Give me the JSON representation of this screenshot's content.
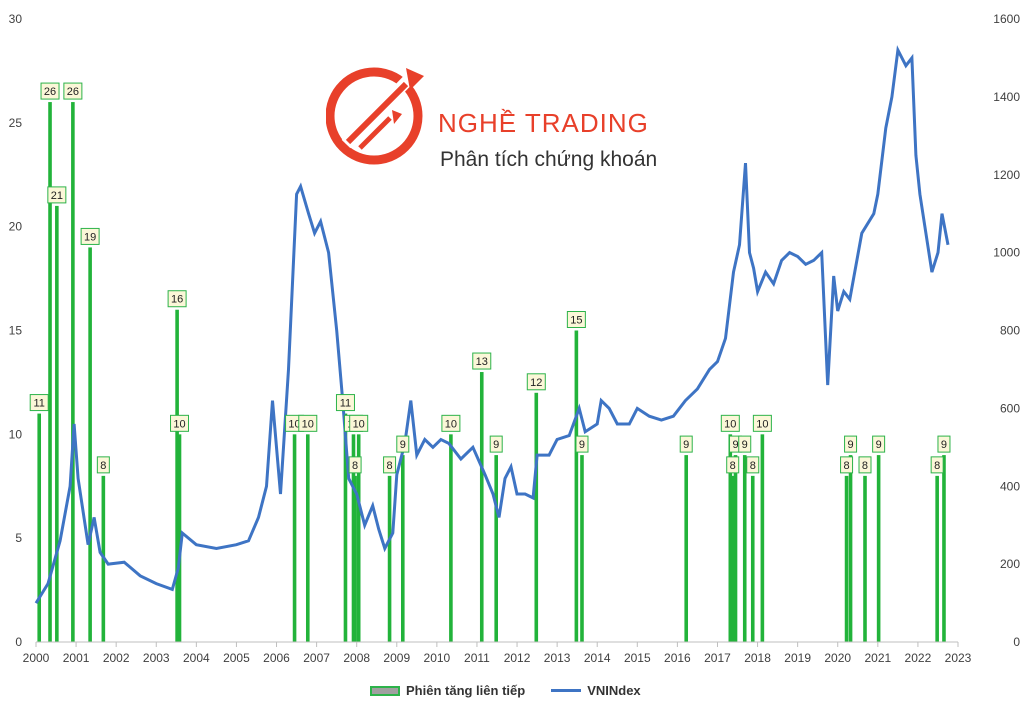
{
  "brand": {
    "title": "NGHỀ TRADING",
    "subtitle": "Phân tích chứng khoán"
  },
  "colors": {
    "bars": "#22b33a",
    "line": "#3e74c4",
    "label_bg": "#fbf7d8",
    "label_border": "#2db34a",
    "brand": "#e8402a"
  },
  "chart_data": {
    "type": "bar",
    "title": "",
    "legend": [
      "Phiên tăng liên tiếp",
      "VNINdex"
    ],
    "legend_position": "bottom",
    "grid": false,
    "x_range": [
      2000.0,
      2023.0
    ],
    "x_ticks": [
      "2000",
      "2001",
      "2002",
      "2003",
      "2004",
      "2005",
      "2006",
      "2007",
      "2008",
      "2009",
      "2010",
      "2011",
      "2012",
      "2013",
      "2014",
      "2015",
      "2016",
      "2017",
      "2018",
      "2019",
      "2020",
      "2021",
      "2022",
      "2023"
    ],
    "y_left_range": [
      0,
      30
    ],
    "y_left_ticks": [
      "0",
      "5",
      "10",
      "15",
      "20",
      "25",
      "30"
    ],
    "y_right_range": [
      0,
      1600
    ],
    "y_right_ticks": [
      "0",
      "200",
      "400",
      "600",
      "800",
      "1000",
      "1200",
      "1400",
      "1600"
    ],
    "series": [
      {
        "name": "Phiên tăng liên tiếp",
        "type": "bar",
        "axis": "left",
        "points": [
          {
            "x": 2000.08,
            "y": 11
          },
          {
            "x": 2000.35,
            "y": 26
          },
          {
            "x": 2000.52,
            "y": 21
          },
          {
            "x": 2000.92,
            "y": 26
          },
          {
            "x": 2001.35,
            "y": 19
          },
          {
            "x": 2001.68,
            "y": 8
          },
          {
            "x": 2003.52,
            "y": 16
          },
          {
            "x": 2003.58,
            "y": 10
          },
          {
            "x": 2006.45,
            "y": 10
          },
          {
            "x": 2006.78,
            "y": 10
          },
          {
            "x": 2007.72,
            "y": 11
          },
          {
            "x": 2007.92,
            "y": 10
          },
          {
            "x": 2007.96,
            "y": 8
          },
          {
            "x": 2008.05,
            "y": 10
          },
          {
            "x": 2008.82,
            "y": 8
          },
          {
            "x": 2009.15,
            "y": 9
          },
          {
            "x": 2010.35,
            "y": 10
          },
          {
            "x": 2011.12,
            "y": 13
          },
          {
            "x": 2011.48,
            "y": 9
          },
          {
            "x": 2012.48,
            "y": 12
          },
          {
            "x": 2013.48,
            "y": 15
          },
          {
            "x": 2013.62,
            "y": 9
          },
          {
            "x": 2016.22,
            "y": 9
          },
          {
            "x": 2017.32,
            "y": 10
          },
          {
            "x": 2017.38,
            "y": 8
          },
          {
            "x": 2017.45,
            "y": 9
          },
          {
            "x": 2017.68,
            "y": 9
          },
          {
            "x": 2017.88,
            "y": 8
          },
          {
            "x": 2018.12,
            "y": 10
          },
          {
            "x": 2020.22,
            "y": 8
          },
          {
            "x": 2020.32,
            "y": 9
          },
          {
            "x": 2020.68,
            "y": 8
          },
          {
            "x": 2021.02,
            "y": 9
          },
          {
            "x": 2022.48,
            "y": 8
          },
          {
            "x": 2022.65,
            "y": 9
          }
        ]
      },
      {
        "name": "VNINdex",
        "type": "line",
        "axis": "right",
        "x": [
          2000.0,
          2000.3,
          2000.6,
          2000.85,
          2000.95,
          2001.05,
          2001.3,
          2001.45,
          2001.6,
          2001.8,
          2002.2,
          2002.6,
          2003.0,
          2003.4,
          2003.55,
          2003.65,
          2004.0,
          2004.5,
          2005.0,
          2005.3,
          2005.55,
          2005.75,
          2005.9,
          2006.1,
          2006.3,
          2006.5,
          2006.6,
          2006.8,
          2006.95,
          2007.1,
          2007.3,
          2007.5,
          2007.65,
          2007.8,
          2008.0,
          2008.2,
          2008.4,
          2008.55,
          2008.7,
          2008.9,
          2009.0,
          2009.2,
          2009.35,
          2009.5,
          2009.7,
          2009.9,
          2010.1,
          2010.3,
          2010.6,
          2010.9,
          2011.2,
          2011.4,
          2011.55,
          2011.7,
          2011.85,
          2012.0,
          2012.2,
          2012.4,
          2012.5,
          2012.8,
          2013.0,
          2013.3,
          2013.55,
          2013.7,
          2014.0,
          2014.1,
          2014.3,
          2014.5,
          2014.8,
          2015.0,
          2015.3,
          2015.6,
          2015.9,
          2016.2,
          2016.5,
          2016.8,
          2017.0,
          2017.2,
          2017.4,
          2017.55,
          2017.7,
          2017.8,
          2017.9,
          2018.0,
          2018.2,
          2018.4,
          2018.6,
          2018.8,
          2019.0,
          2019.2,
          2019.4,
          2019.6,
          2019.75,
          2019.9,
          2020.0,
          2020.15,
          2020.3,
          2020.6,
          2020.9,
          2021.0,
          2021.2,
          2021.35,
          2021.5,
          2021.7,
          2021.85,
          2021.95,
          2022.05,
          2022.2,
          2022.35,
          2022.5,
          2022.6,
          2022.75
        ],
        "y": [
          100,
          150,
          260,
          400,
          560,
          420,
          250,
          320,
          230,
          200,
          205,
          170,
          150,
          135,
          190,
          280,
          250,
          240,
          250,
          260,
          320,
          400,
          620,
          380,
          700,
          1150,
          1170,
          1100,
          1050,
          1080,
          1000,
          800,
          620,
          420,
          380,
          300,
          350,
          290,
          240,
          280,
          430,
          510,
          620,
          480,
          520,
          500,
          520,
          510,
          470,
          500,
          430,
          380,
          320,
          420,
          450,
          380,
          380,
          370,
          480,
          480,
          520,
          530,
          600,
          540,
          560,
          620,
          600,
          560,
          560,
          600,
          580,
          570,
          580,
          620,
          650,
          700,
          720,
          780,
          950,
          1020,
          1230,
          1000,
          960,
          900,
          950,
          920,
          980,
          1000,
          990,
          970,
          980,
          1000,
          660,
          940,
          850,
          900,
          880,
          1050,
          1100,
          1150,
          1320,
          1400,
          1520,
          1480,
          1500,
          1250,
          1150,
          1050,
          950,
          1000,
          1100,
          1020
        ]
      }
    ]
  }
}
